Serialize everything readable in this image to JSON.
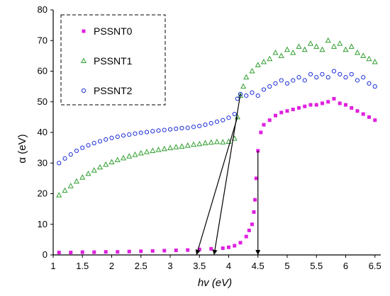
{
  "chart_data": {
    "type": "scatter",
    "xlabel": "hv (eV)",
    "ylabel": "α (eV)",
    "xlim": [
      1,
      6.6
    ],
    "ylim": [
      0,
      80
    ],
    "x_ticks": [
      "1",
      "1.5",
      "2",
      "2.5",
      "3",
      "3.5",
      "4",
      "4.5",
      "5",
      "5.5",
      "6",
      "6.5"
    ],
    "y_ticks": [
      "0",
      "10",
      "20",
      "30",
      "40",
      "50",
      "60",
      "70",
      "80"
    ],
    "grid": false,
    "legend_position": "top-left",
    "legend_border": "dashed",
    "series": [
      {
        "name": "PSSNT0",
        "marker": "square",
        "color": "#e020e0",
        "points": [
          [
            1.1,
            0.8
          ],
          [
            1.3,
            0.8
          ],
          [
            1.5,
            0.9
          ],
          [
            1.7,
            0.9
          ],
          [
            1.9,
            1.0
          ],
          [
            2.1,
            1.0
          ],
          [
            2.3,
            1.1
          ],
          [
            2.5,
            1.2
          ],
          [
            2.7,
            1.3
          ],
          [
            2.9,
            1.4
          ],
          [
            3.1,
            1.5
          ],
          [
            3.3,
            1.6
          ],
          [
            3.5,
            1.8
          ],
          [
            3.7,
            2.0
          ],
          [
            3.9,
            2.2
          ],
          [
            4.0,
            2.5
          ],
          [
            4.1,
            3.0
          ],
          [
            4.2,
            4.0
          ],
          [
            4.3,
            6.0
          ],
          [
            4.35,
            8.0
          ],
          [
            4.4,
            10.0
          ],
          [
            4.43,
            14.0
          ],
          [
            4.45,
            18.0
          ],
          [
            4.47,
            25.0
          ],
          [
            4.5,
            34.0
          ],
          [
            4.55,
            40.0
          ],
          [
            4.6,
            42.5
          ],
          [
            4.7,
            44.0
          ],
          [
            4.8,
            45.5
          ],
          [
            4.9,
            46.5
          ],
          [
            5.0,
            47.0
          ],
          [
            5.1,
            47.5
          ],
          [
            5.2,
            48.0
          ],
          [
            5.3,
            48.5
          ],
          [
            5.4,
            49.0
          ],
          [
            5.5,
            49.0
          ],
          [
            5.6,
            49.5
          ],
          [
            5.7,
            50.0
          ],
          [
            5.8,
            51.0
          ],
          [
            5.9,
            49.5
          ],
          [
            6.0,
            49.0
          ],
          [
            6.1,
            48.0
          ],
          [
            6.2,
            47.0
          ],
          [
            6.3,
            46.0
          ],
          [
            6.4,
            45.0
          ],
          [
            6.5,
            44.0
          ]
        ]
      },
      {
        "name": "PSSNT1",
        "marker": "triangle",
        "color": "#2e9e2e",
        "points": [
          [
            1.1,
            19.5
          ],
          [
            1.2,
            21.0
          ],
          [
            1.3,
            22.5
          ],
          [
            1.4,
            24.0
          ],
          [
            1.5,
            25.3
          ],
          [
            1.6,
            26.5
          ],
          [
            1.7,
            27.6
          ],
          [
            1.8,
            28.6
          ],
          [
            1.9,
            29.5
          ],
          [
            2.0,
            30.3
          ],
          [
            2.1,
            31.0
          ],
          [
            2.2,
            31.6
          ],
          [
            2.3,
            32.2
          ],
          [
            2.4,
            32.7
          ],
          [
            2.5,
            33.2
          ],
          [
            2.6,
            33.6
          ],
          [
            2.7,
            34.0
          ],
          [
            2.8,
            34.3
          ],
          [
            2.9,
            34.6
          ],
          [
            3.0,
            34.9
          ],
          [
            3.1,
            35.2
          ],
          [
            3.2,
            35.4
          ],
          [
            3.3,
            35.7
          ],
          [
            3.4,
            36.0
          ],
          [
            3.5,
            36.2
          ],
          [
            3.6,
            36.5
          ],
          [
            3.7,
            36.7
          ],
          [
            3.8,
            36.9
          ],
          [
            3.9,
            36.8
          ],
          [
            4.0,
            37.0
          ],
          [
            4.1,
            38.0
          ],
          [
            4.15,
            45.0
          ],
          [
            4.2,
            52.0
          ],
          [
            4.25,
            55.0
          ],
          [
            4.3,
            58.0
          ],
          [
            4.4,
            60.0
          ],
          [
            4.5,
            62.0
          ],
          [
            4.6,
            63.0
          ],
          [
            4.7,
            64.0
          ],
          [
            4.8,
            66.0
          ],
          [
            4.9,
            65.0
          ],
          [
            5.0,
            67.0
          ],
          [
            5.1,
            66.0
          ],
          [
            5.2,
            68.0
          ],
          [
            5.3,
            67.0
          ],
          [
            5.4,
            69.0
          ],
          [
            5.5,
            68.0
          ],
          [
            5.6,
            67.0
          ],
          [
            5.7,
            70.0
          ],
          [
            5.8,
            68.0
          ],
          [
            5.9,
            69.0
          ],
          [
            6.0,
            67.0
          ],
          [
            6.1,
            68.0
          ],
          [
            6.2,
            66.0
          ],
          [
            6.3,
            65.0
          ],
          [
            6.4,
            64.0
          ],
          [
            6.5,
            63.0
          ]
        ]
      },
      {
        "name": "PSSNT2",
        "marker": "circle",
        "color": "#1c2fd8",
        "points": [
          [
            1.1,
            30.0
          ],
          [
            1.2,
            31.5
          ],
          [
            1.3,
            32.8
          ],
          [
            1.4,
            34.0
          ],
          [
            1.5,
            35.0
          ],
          [
            1.6,
            35.8
          ],
          [
            1.7,
            36.5
          ],
          [
            1.8,
            37.1
          ],
          [
            1.9,
            37.7
          ],
          [
            2.0,
            38.2
          ],
          [
            2.1,
            38.6
          ],
          [
            2.2,
            39.0
          ],
          [
            2.3,
            39.3
          ],
          [
            2.4,
            39.6
          ],
          [
            2.5,
            39.9
          ],
          [
            2.6,
            40.1
          ],
          [
            2.7,
            40.4
          ],
          [
            2.8,
            40.6
          ],
          [
            2.9,
            40.8
          ],
          [
            3.0,
            41.0
          ],
          [
            3.1,
            41.2
          ],
          [
            3.2,
            41.4
          ],
          [
            3.3,
            41.5
          ],
          [
            3.4,
            41.8
          ],
          [
            3.5,
            42.1
          ],
          [
            3.6,
            42.5
          ],
          [
            3.7,
            43.0
          ],
          [
            3.8,
            43.5
          ],
          [
            3.9,
            44.0
          ],
          [
            4.0,
            44.8
          ],
          [
            4.1,
            46.0
          ],
          [
            4.15,
            51.0
          ],
          [
            4.2,
            52.5
          ],
          [
            4.3,
            52.0
          ],
          [
            4.4,
            53.0
          ],
          [
            4.5,
            52.0
          ],
          [
            4.6,
            54.0
          ],
          [
            4.7,
            55.0
          ],
          [
            4.8,
            56.0
          ],
          [
            4.9,
            57.0
          ],
          [
            5.0,
            56.0
          ],
          [
            5.1,
            57.0
          ],
          [
            5.2,
            58.0
          ],
          [
            5.3,
            57.0
          ],
          [
            5.4,
            59.0
          ],
          [
            5.5,
            58.0
          ],
          [
            5.6,
            59.0
          ],
          [
            5.7,
            58.0
          ],
          [
            5.8,
            60.0
          ],
          [
            5.9,
            59.0
          ],
          [
            6.0,
            58.0
          ],
          [
            6.1,
            59.0
          ],
          [
            6.2,
            57.0
          ],
          [
            6.3,
            58.0
          ],
          [
            6.4,
            56.0
          ],
          [
            6.5,
            55.0
          ]
        ]
      }
    ],
    "annotations": [
      {
        "type": "arrow",
        "from": [
          4.15,
          45.0
        ],
        "to": [
          3.45,
          0
        ]
      },
      {
        "type": "arrow",
        "from": [
          4.2,
          52.5
        ],
        "to": [
          3.75,
          0
        ]
      },
      {
        "type": "arrow",
        "from": [
          4.5,
          34.0
        ],
        "to": [
          4.5,
          0
        ]
      }
    ]
  }
}
